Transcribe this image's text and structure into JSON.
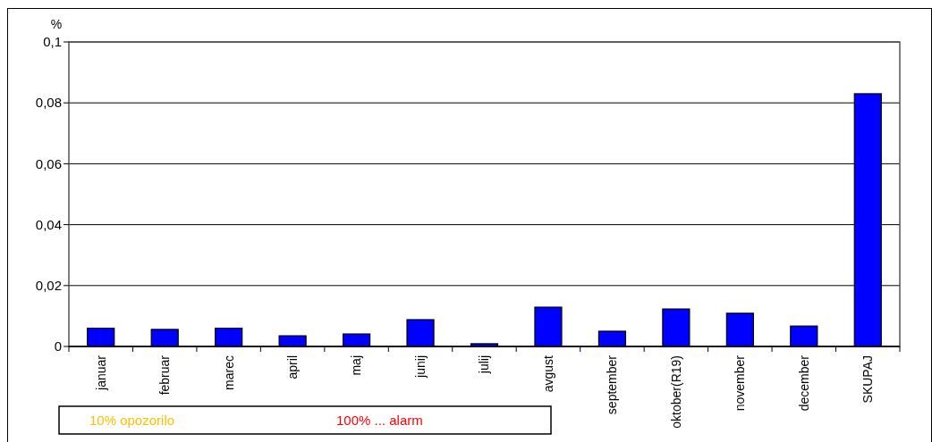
{
  "chart_data": {
    "type": "bar",
    "ylabel": "%",
    "categories": [
      "januar",
      "februar",
      "marec",
      "april",
      "maj",
      "junij",
      "julij",
      "avgust",
      "september",
      "oktober(R19)",
      "november",
      "december",
      "SKUPAJ"
    ],
    "values": [
      0.006,
      0.0056,
      0.006,
      0.0035,
      0.0041,
      0.0088,
      0.0009,
      0.0129,
      0.005,
      0.0123,
      0.0109,
      0.0067,
      0.083
    ],
    "color": "#0000ff",
    "ylim": [
      0,
      0.1
    ],
    "yticks": [
      {
        "value": 0,
        "label": "0"
      },
      {
        "value": 0.02,
        "label": "0,02"
      },
      {
        "value": 0.04,
        "label": "0,04"
      },
      {
        "value": 0.06,
        "label": "0,06"
      },
      {
        "value": 0.08,
        "label": "0,08"
      },
      {
        "value": 0.1,
        "label": "0,1"
      }
    ],
    "grid": "y",
    "annotations": [
      "10% opozorilo",
      "100% ... alarm"
    ]
  }
}
